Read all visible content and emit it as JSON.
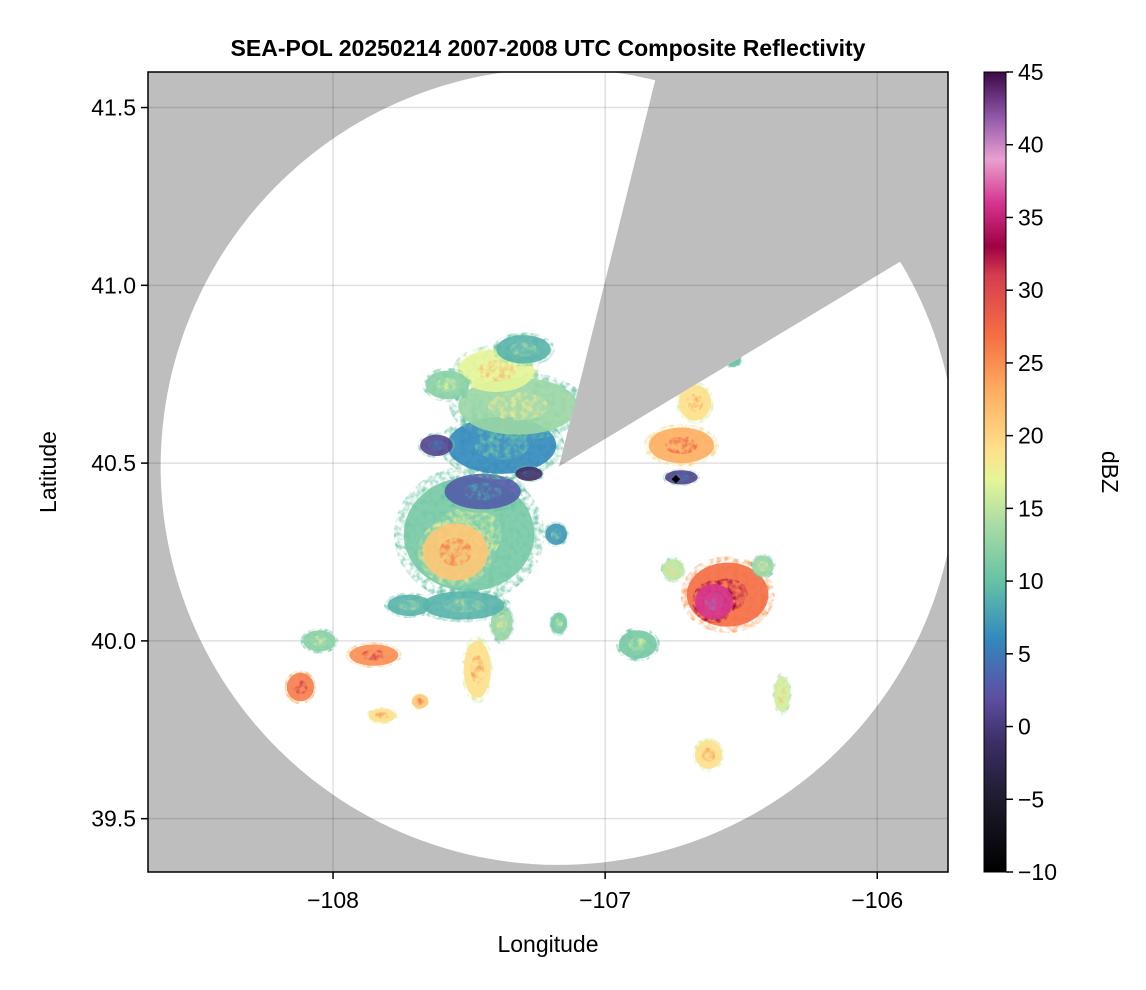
{
  "chart_data": {
    "type": "heatmap",
    "title": "SEA-POL 20250214 2007-2008 UTC Composite Reflectivity",
    "xlabel": "Longitude",
    "ylabel": "Latitude",
    "xlim": [
      -108.68,
      -105.74
    ],
    "ylim": [
      39.35,
      41.6
    ],
    "x_ticks": [
      -108,
      -107,
      -106
    ],
    "x_tick_labels": [
      "−108",
      "−107",
      "−106"
    ],
    "y_ticks": [
      39.5,
      40.0,
      40.5,
      41.0,
      41.5
    ],
    "y_tick_labels": [
      "39.5",
      "40.0",
      "40.5",
      "41.0",
      "41.5"
    ],
    "grid": true,
    "background_color": "#bebebe",
    "coverage_color": "#ffffff",
    "radar_site": {
      "lon": -107.17,
      "lat": 40.49
    },
    "coverage_radius_deg_lat": 1.12,
    "beam_blockage_sector": {
      "from_azimuth_deg": 14,
      "to_azimuth_deg": 59
    },
    "colorbar": {
      "label": "dBZ",
      "vmin": -10,
      "vmax": 45,
      "ticks": [
        -10,
        -5,
        0,
        5,
        10,
        15,
        20,
        25,
        30,
        35,
        40,
        45
      ],
      "tick_labels": [
        "−10",
        "−5",
        "0",
        "5",
        "10",
        "15",
        "20",
        "25",
        "30",
        "35",
        "40",
        "45"
      ],
      "colormap_stops": [
        {
          "value": -10,
          "color": "#000000"
        },
        {
          "value": -5,
          "color": "#1e1b2e"
        },
        {
          "value": -1,
          "color": "#3d2f66"
        },
        {
          "value": 2,
          "color": "#5e4fa2"
        },
        {
          "value": 6,
          "color": "#3288bd"
        },
        {
          "value": 10,
          "color": "#66c2a5"
        },
        {
          "value": 14,
          "color": "#abdda4"
        },
        {
          "value": 17,
          "color": "#e6f598"
        },
        {
          "value": 19,
          "color": "#fee08b"
        },
        {
          "value": 23,
          "color": "#fdae61"
        },
        {
          "value": 27,
          "color": "#f46d43"
        },
        {
          "value": 31,
          "color": "#d53e4f"
        },
        {
          "value": 33,
          "color": "#9e0142"
        },
        {
          "value": 36,
          "color": "#d6358f"
        },
        {
          "value": 39,
          "color": "#e8a0cf"
        },
        {
          "value": 42,
          "color": "#8d55a6"
        },
        {
          "value": 45,
          "color": "#3a0a48"
        }
      ]
    },
    "echo_cells": [
      {
        "lon": -107.5,
        "lat": 40.3,
        "rx": 0.24,
        "ry": 0.16,
        "dbz": 14
      },
      {
        "lon": -107.55,
        "lat": 40.25,
        "rx": 0.12,
        "ry": 0.08,
        "dbz": 24
      },
      {
        "lon": -107.45,
        "lat": 40.42,
        "rx": 0.14,
        "ry": 0.05,
        "dbz": 6
      },
      {
        "lon": -107.38,
        "lat": 40.55,
        "rx": 0.2,
        "ry": 0.08,
        "dbz": 9
      },
      {
        "lon": -107.32,
        "lat": 40.66,
        "rx": 0.22,
        "ry": 0.08,
        "dbz": 16
      },
      {
        "lon": -107.4,
        "lat": 40.76,
        "rx": 0.14,
        "ry": 0.06,
        "dbz": 20
      },
      {
        "lon": -107.3,
        "lat": 40.82,
        "rx": 0.1,
        "ry": 0.04,
        "dbz": 12
      },
      {
        "lon": -107.58,
        "lat": 40.72,
        "rx": 0.08,
        "ry": 0.04,
        "dbz": 15
      },
      {
        "lon": -107.72,
        "lat": 40.1,
        "rx": 0.08,
        "ry": 0.03,
        "dbz": 12
      },
      {
        "lon": -107.85,
        "lat": 39.96,
        "rx": 0.09,
        "ry": 0.03,
        "dbz": 28
      },
      {
        "lon": -108.12,
        "lat": 39.87,
        "rx": 0.05,
        "ry": 0.04,
        "dbz": 29
      },
      {
        "lon": -107.82,
        "lat": 39.79,
        "rx": 0.05,
        "ry": 0.02,
        "dbz": 22
      },
      {
        "lon": -107.68,
        "lat": 39.83,
        "rx": 0.03,
        "ry": 0.02,
        "dbz": 24
      },
      {
        "lon": -107.47,
        "lat": 39.92,
        "rx": 0.05,
        "ry": 0.08,
        "dbz": 22
      },
      {
        "lon": -107.38,
        "lat": 40.05,
        "rx": 0.04,
        "ry": 0.05,
        "dbz": 16
      },
      {
        "lon": -107.17,
        "lat": 40.05,
        "rx": 0.03,
        "ry": 0.03,
        "dbz": 14
      },
      {
        "lon": -106.88,
        "lat": 39.99,
        "rx": 0.07,
        "ry": 0.04,
        "dbz": 14
      },
      {
        "lon": -106.55,
        "lat": 40.13,
        "rx": 0.15,
        "ry": 0.09,
        "dbz": 30
      },
      {
        "lon": -106.6,
        "lat": 40.11,
        "rx": 0.07,
        "ry": 0.05,
        "dbz": 39
      },
      {
        "lon": -106.42,
        "lat": 40.21,
        "rx": 0.04,
        "ry": 0.03,
        "dbz": 16
      },
      {
        "lon": -106.72,
        "lat": 40.55,
        "rx": 0.12,
        "ry": 0.05,
        "dbz": 26
      },
      {
        "lon": -106.67,
        "lat": 40.67,
        "rx": 0.06,
        "ry": 0.05,
        "dbz": 22
      },
      {
        "lon": -106.53,
        "lat": 40.8,
        "rx": 0.03,
        "ry": 0.03,
        "dbz": 13
      },
      {
        "lon": -106.62,
        "lat": 39.68,
        "rx": 0.05,
        "ry": 0.04,
        "dbz": 22
      },
      {
        "lon": -106.35,
        "lat": 39.85,
        "rx": 0.03,
        "ry": 0.05,
        "dbz": 19
      },
      {
        "lon": -106.75,
        "lat": 40.2,
        "rx": 0.04,
        "ry": 0.03,
        "dbz": 18
      },
      {
        "lon": -107.62,
        "lat": 40.55,
        "rx": 0.06,
        "ry": 0.03,
        "dbz": 4
      },
      {
        "lon": -107.28,
        "lat": 40.47,
        "rx": 0.05,
        "ry": 0.02,
        "dbz": 2
      },
      {
        "lon": -106.72,
        "lat": 40.46,
        "rx": 0.06,
        "ry": 0.02,
        "dbz": 4
      },
      {
        "lon": -107.52,
        "lat": 40.1,
        "rx": 0.15,
        "ry": 0.04,
        "dbz": 12
      },
      {
        "lon": -108.05,
        "lat": 40.0,
        "rx": 0.06,
        "ry": 0.03,
        "dbz": 15
      },
      {
        "lon": -107.18,
        "lat": 40.3,
        "rx": 0.04,
        "ry": 0.03,
        "dbz": 10
      }
    ]
  }
}
